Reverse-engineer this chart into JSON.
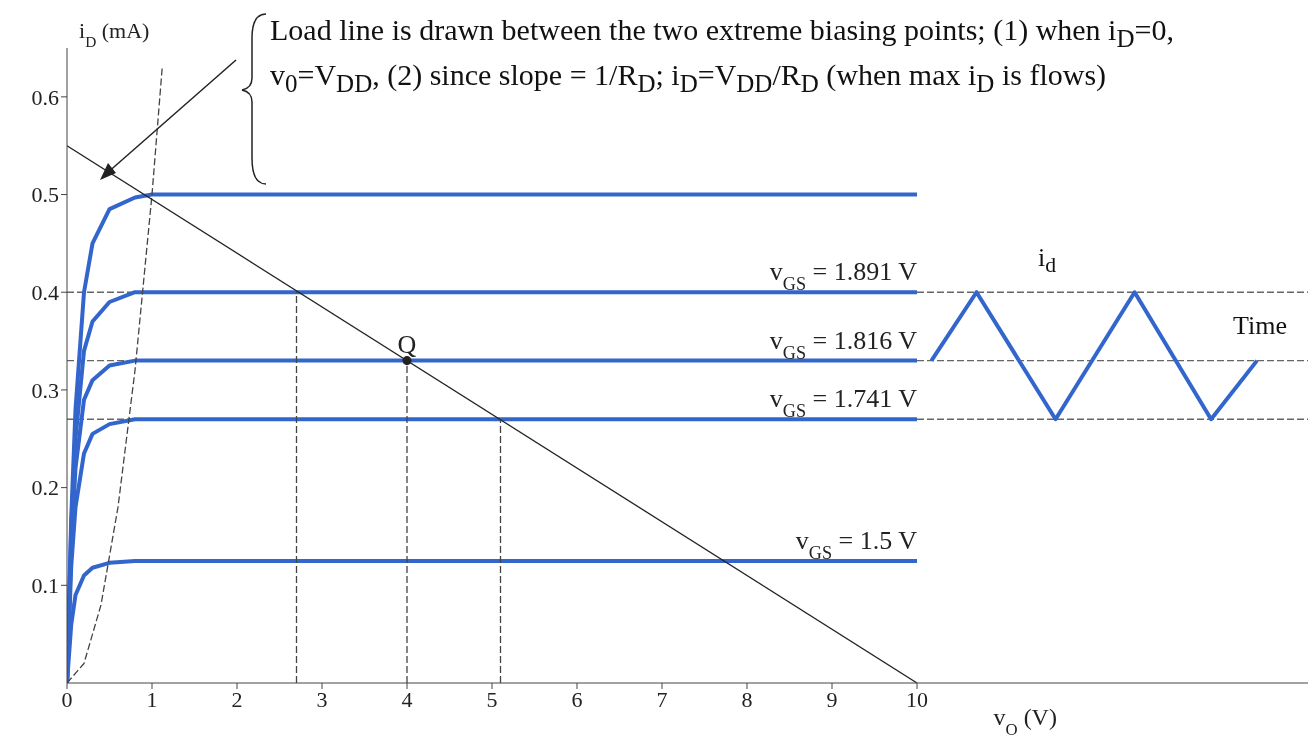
{
  "chart_data": {
    "type": "line",
    "xlabel": "v$_{O}$ (V)",
    "ylabel": "i$_{D}$ (mA)",
    "annotations": [
      "Load line is drawn between the two extreme biasing points; (1) when i$_{D}$=0, v$_{0}$=V$_{DD}$, (2) since slope = 1/R$_{D}$; i$_{D}$=V$_{DD}$/R$_{D}$ (when max i$_{D}$ is flows)",
      {
        "text": "Q",
        "x": 4,
        "y": 0.33
      },
      "i$_{d}$",
      "Time"
    ],
    "xlim": [
      0,
      14.6
    ],
    "xticks": [
      0,
      1,
      2,
      3,
      4,
      5,
      6,
      7,
      8,
      9,
      10
    ],
    "ylim": [
      0,
      0.65
    ],
    "yticks": [
      0.1,
      0.2,
      0.3,
      0.4,
      0.5,
      0.6
    ],
    "ref_lines": [
      {
        "axis": "y",
        "value": 0.4,
        "color": "#666666",
        "line_style": "dashed"
      },
      {
        "axis": "y",
        "value": 0.33,
        "color": "#666666",
        "line_style": "dashed"
      },
      {
        "axis": "y",
        "value": 0.27,
        "color": "#666666",
        "line_style": "dashed"
      }
    ],
    "series": [
      {
        "color": "#3366cc",
        "x": [
          0,
          0.05,
          0.1,
          0.2,
          0.3,
          0.5,
          0.8,
          1,
          10
        ],
        "values": [
          0,
          0.17,
          0.28,
          0.4,
          0.45,
          0.485,
          0.497,
          0.5,
          0.5
        ]
      },
      {
        "name": "v$_{GS}$ = 1.891 V",
        "color": "#3366cc",
        "x": [
          0,
          0.05,
          0.1,
          0.2,
          0.3,
          0.5,
          0.8,
          10
        ],
        "values": [
          0,
          0.16,
          0.25,
          0.34,
          0.37,
          0.39,
          0.4,
          0.4
        ]
      },
      {
        "name": "v$_{GS}$ = 1.816 V",
        "color": "#3366cc",
        "x": [
          0,
          0.05,
          0.1,
          0.2,
          0.3,
          0.5,
          0.8,
          10
        ],
        "values": [
          0,
          0.14,
          0.22,
          0.29,
          0.31,
          0.325,
          0.33,
          0.33
        ]
      },
      {
        "name": "v$_{GS}$ = 1.741 V",
        "color": "#3366cc",
        "x": [
          0,
          0.05,
          0.1,
          0.2,
          0.3,
          0.5,
          0.8,
          10
        ],
        "values": [
          0,
          0.12,
          0.18,
          0.235,
          0.255,
          0.265,
          0.27,
          0.27
        ]
      },
      {
        "name": "v$_{GS}$ = 1.5 V",
        "color": "#3366cc",
        "x": [
          0,
          0.05,
          0.1,
          0.2,
          0.3,
          0.5,
          0.8,
          10
        ],
        "values": [
          0,
          0.06,
          0.09,
          0.11,
          0.118,
          0.123,
          0.125,
          0.125
        ]
      },
      {
        "color": "#444444",
        "line_style": "dashed",
        "x": [
          0,
          0.2,
          0.4,
          0.6,
          0.8,
          1,
          1.12
        ],
        "values": [
          0,
          0.02,
          0.08,
          0.18,
          0.32,
          0.5,
          0.63
        ]
      },
      {
        "color": "#222222",
        "x": [
          0,
          10
        ],
        "values": [
          0.55,
          0
        ]
      },
      {
        "color": "#444444",
        "line_style": "dashed",
        "x": [
          2.7,
          2.7
        ],
        "values": [
          0,
          0.4
        ]
      },
      {
        "color": "#444444",
        "line_style": "dashed",
        "x": [
          4,
          4
        ],
        "values": [
          0,
          0.33
        ]
      },
      {
        "color": "#444444",
        "line_style": "dashed",
        "x": [
          5.1,
          5.1
        ],
        "values": [
          0,
          0.27
        ]
      },
      {
        "color": "#3366cc",
        "x": [
          10.17,
          10.7,
          11.63,
          12.56,
          13.46,
          14.0
        ],
        "values": [
          0.33,
          0.4,
          0.27,
          0.4,
          0.27,
          0.33
        ]
      },
      {
        "type": "scatter",
        "marker": "circle",
        "color": "#222222",
        "x": [
          4
        ],
        "values": [
          0.33
        ]
      }
    ]
  }
}
